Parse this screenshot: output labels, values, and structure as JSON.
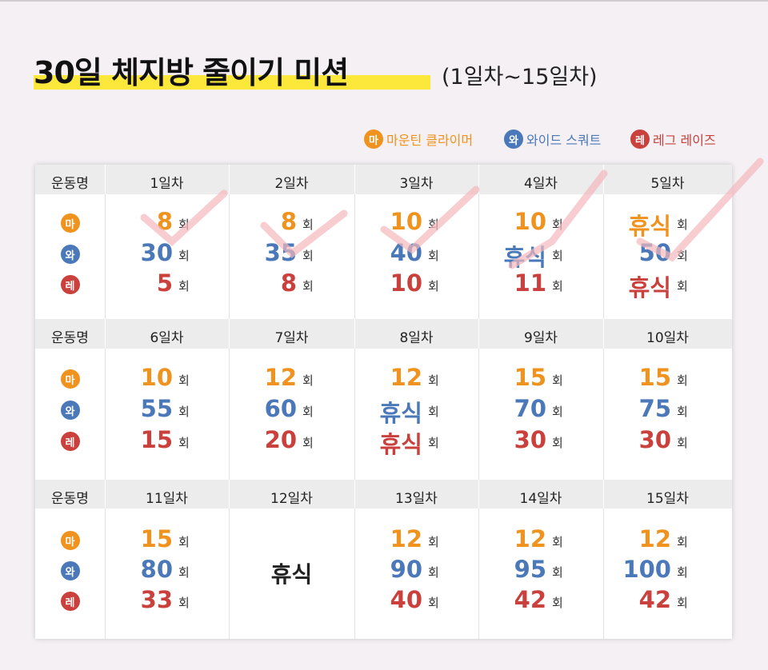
{
  "title": "30일 체지방 줄이기 미션",
  "subtitle": "(1일차~15일차)",
  "unit": "회",
  "exercises": [
    {
      "icon": "마",
      "name": "마운틴 클라이머",
      "color": "#f0921e"
    },
    {
      "icon": "와",
      "name": "와이드 스쿼트",
      "color": "#4a78b8"
    },
    {
      "icon": "레",
      "name": "레그 레이즈",
      "color": "#c9403d"
    }
  ],
  "table": {
    "blocks": [
      {
        "label": "운동명",
        "days": [
          {
            "day": "1일차",
            "counts": [
              8,
              30,
              5
            ]
          },
          {
            "day": "2일차",
            "counts": [
              8,
              35,
              8
            ]
          },
          {
            "day": "3일차",
            "counts": [
              10,
              40,
              10
            ]
          },
          {
            "day": "4일차",
            "counts": [
              10,
              "휴식",
              11
            ]
          },
          {
            "day": "5일차",
            "counts": [
              "휴식",
              50,
              "휴식"
            ]
          }
        ]
      },
      {
        "label": "운동명",
        "days": [
          {
            "day": "6일차",
            "counts": [
              10,
              55,
              15
            ]
          },
          {
            "day": "7일차",
            "counts": [
              12,
              60,
              20
            ]
          },
          {
            "day": "8일차",
            "counts": [
              12,
              "휴식",
              "휴식"
            ]
          },
          {
            "day": "9일차",
            "counts": [
              15,
              70,
              30
            ]
          },
          {
            "day": "10일차",
            "counts": [
              15,
              75,
              30
            ]
          }
        ]
      },
      {
        "label": "운동명",
        "days": [
          {
            "day": "11일차",
            "counts": [
              15,
              80,
              33
            ]
          },
          {
            "day": "12일차",
            "note": "휴식"
          },
          {
            "day": "13일차",
            "counts": [
              12,
              90,
              40
            ]
          },
          {
            "day": "14일차",
            "counts": [
              12,
              95,
              42
            ]
          },
          {
            "day": "15일차",
            "counts": [
              12,
              100,
              42
            ]
          }
        ]
      }
    ]
  }
}
